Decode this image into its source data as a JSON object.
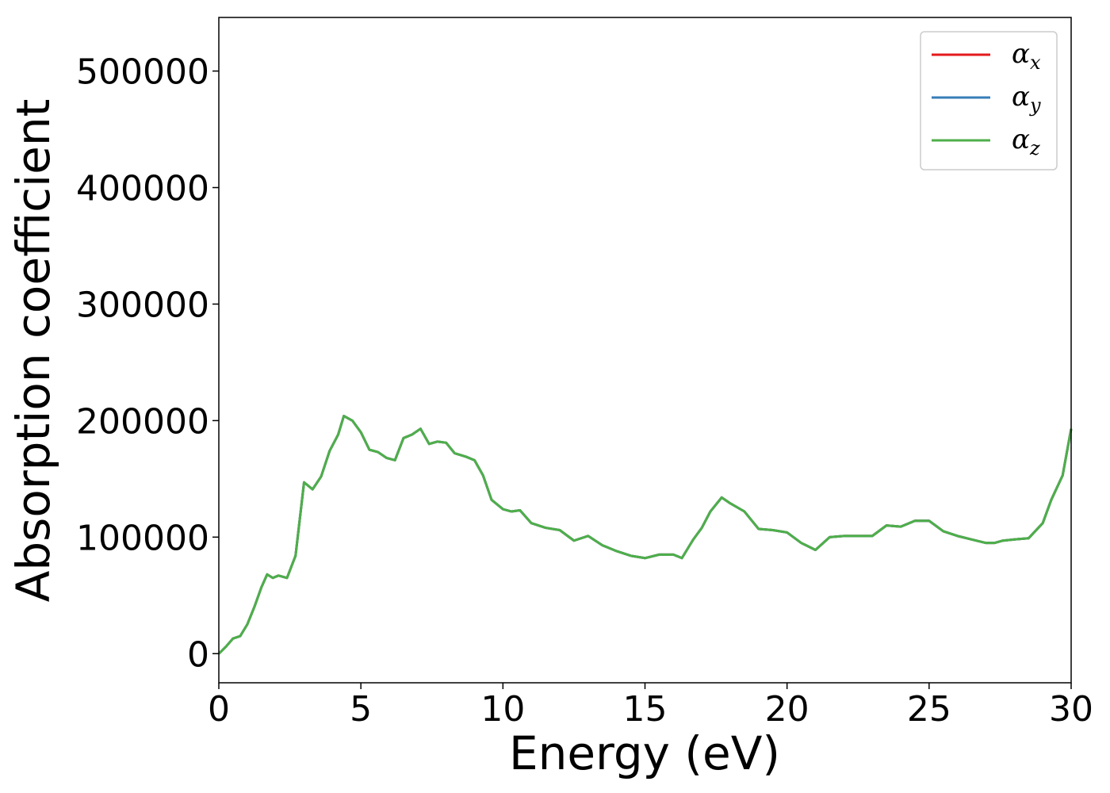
{
  "chart_data": {
    "type": "line",
    "xlabel": "Energy (eV)",
    "ylabel": "Absorption coefficient",
    "x": [
      0,
      0.25,
      0.5,
      0.75,
      1.0,
      1.25,
      1.5,
      1.7,
      1.9,
      2.1,
      2.4,
      2.7,
      3.0,
      3.3,
      3.6,
      3.9,
      4.2,
      4.4,
      4.7,
      5.0,
      5.3,
      5.6,
      5.9,
      6.2,
      6.5,
      6.8,
      7.1,
      7.4,
      7.7,
      8.0,
      8.3,
      8.7,
      9.0,
      9.3,
      9.6,
      10.0,
      10.3,
      10.6,
      11.0,
      11.5,
      12.0,
      12.5,
      13.0,
      13.5,
      14.0,
      14.5,
      15.0,
      15.5,
      16.0,
      16.3,
      16.7,
      17.0,
      17.3,
      17.7,
      18.0,
      18.5,
      19.0,
      19.5,
      20.0,
      20.5,
      21.0,
      21.5,
      22.0,
      22.5,
      23.0,
      23.5,
      24.0,
      24.5,
      25.0,
      25.5,
      26.0,
      26.5,
      27.0,
      27.3,
      27.6,
      28.0,
      28.5,
      29.0,
      29.3,
      29.7,
      30.0
    ],
    "series": [
      {
        "name": "α_x",
        "color": "#e41a1c",
        "values": [
          0,
          6000,
          13000,
          15000,
          25000,
          40000,
          57000,
          68000,
          65000,
          67000,
          65000,
          84000,
          147000,
          141000,
          152000,
          174000,
          188000,
          204000,
          200000,
          190000,
          175000,
          173000,
          168000,
          166000,
          185000,
          188000,
          193000,
          180000,
          182000,
          181000,
          172000,
          169000,
          166000,
          153000,
          132000,
          124000,
          122000,
          123000,
          112000,
          108000,
          106000,
          97000,
          101000,
          93000,
          88000,
          84000,
          82000,
          85000,
          85000,
          82000,
          98000,
          108000,
          122000,
          134000,
          129000,
          122000,
          107000,
          106000,
          104000,
          95000,
          89000,
          100000,
          101000,
          101000,
          101000,
          110000,
          109000,
          114000,
          114000,
          105000,
          101000,
          98000,
          95000,
          95000,
          97000,
          98000,
          99000,
          112000,
          132000,
          153000,
          193000
        ]
      },
      {
        "name": "α_y",
        "color": "#377eb8",
        "values": [
          0,
          6000,
          13000,
          15000,
          25000,
          40000,
          57000,
          68000,
          65000,
          67000,
          65000,
          84000,
          147000,
          141000,
          152000,
          174000,
          188000,
          204000,
          200000,
          190000,
          175000,
          173000,
          168000,
          166000,
          185000,
          188000,
          193000,
          180000,
          182000,
          181000,
          172000,
          169000,
          166000,
          153000,
          132000,
          124000,
          122000,
          123000,
          112000,
          108000,
          106000,
          97000,
          101000,
          93000,
          88000,
          84000,
          82000,
          85000,
          85000,
          82000,
          98000,
          108000,
          122000,
          134000,
          129000,
          122000,
          107000,
          106000,
          104000,
          95000,
          89000,
          100000,
          101000,
          101000,
          101000,
          110000,
          109000,
          114000,
          114000,
          105000,
          101000,
          98000,
          95000,
          95000,
          97000,
          98000,
          99000,
          112000,
          132000,
          153000,
          193000
        ]
      },
      {
        "name": "α_z",
        "color": "#4daf4a",
        "values": [
          0,
          6000,
          13000,
          15000,
          25000,
          40000,
          57000,
          68000,
          65000,
          67000,
          65000,
          84000,
          147000,
          141000,
          152000,
          174000,
          188000,
          204000,
          200000,
          190000,
          175000,
          173000,
          168000,
          166000,
          185000,
          188000,
          193000,
          180000,
          182000,
          181000,
          172000,
          169000,
          166000,
          153000,
          132000,
          124000,
          122000,
          123000,
          112000,
          108000,
          106000,
          97000,
          101000,
          93000,
          88000,
          84000,
          82000,
          85000,
          85000,
          82000,
          98000,
          108000,
          122000,
          134000,
          129000,
          122000,
          107000,
          106000,
          104000,
          95000,
          89000,
          100000,
          101000,
          101000,
          101000,
          110000,
          109000,
          114000,
          114000,
          105000,
          101000,
          98000,
          95000,
          95000,
          97000,
          98000,
          99000,
          112000,
          132000,
          153000,
          193000
        ]
      }
    ],
    "xlim": [
      0,
      30
    ],
    "xticks": [
      0,
      5,
      10,
      15,
      20,
      25,
      30
    ],
    "ylim": [
      -25000,
      546000
    ],
    "yticks": [
      0,
      100000,
      200000,
      300000,
      400000,
      500000
    ],
    "legend": "upper right"
  }
}
